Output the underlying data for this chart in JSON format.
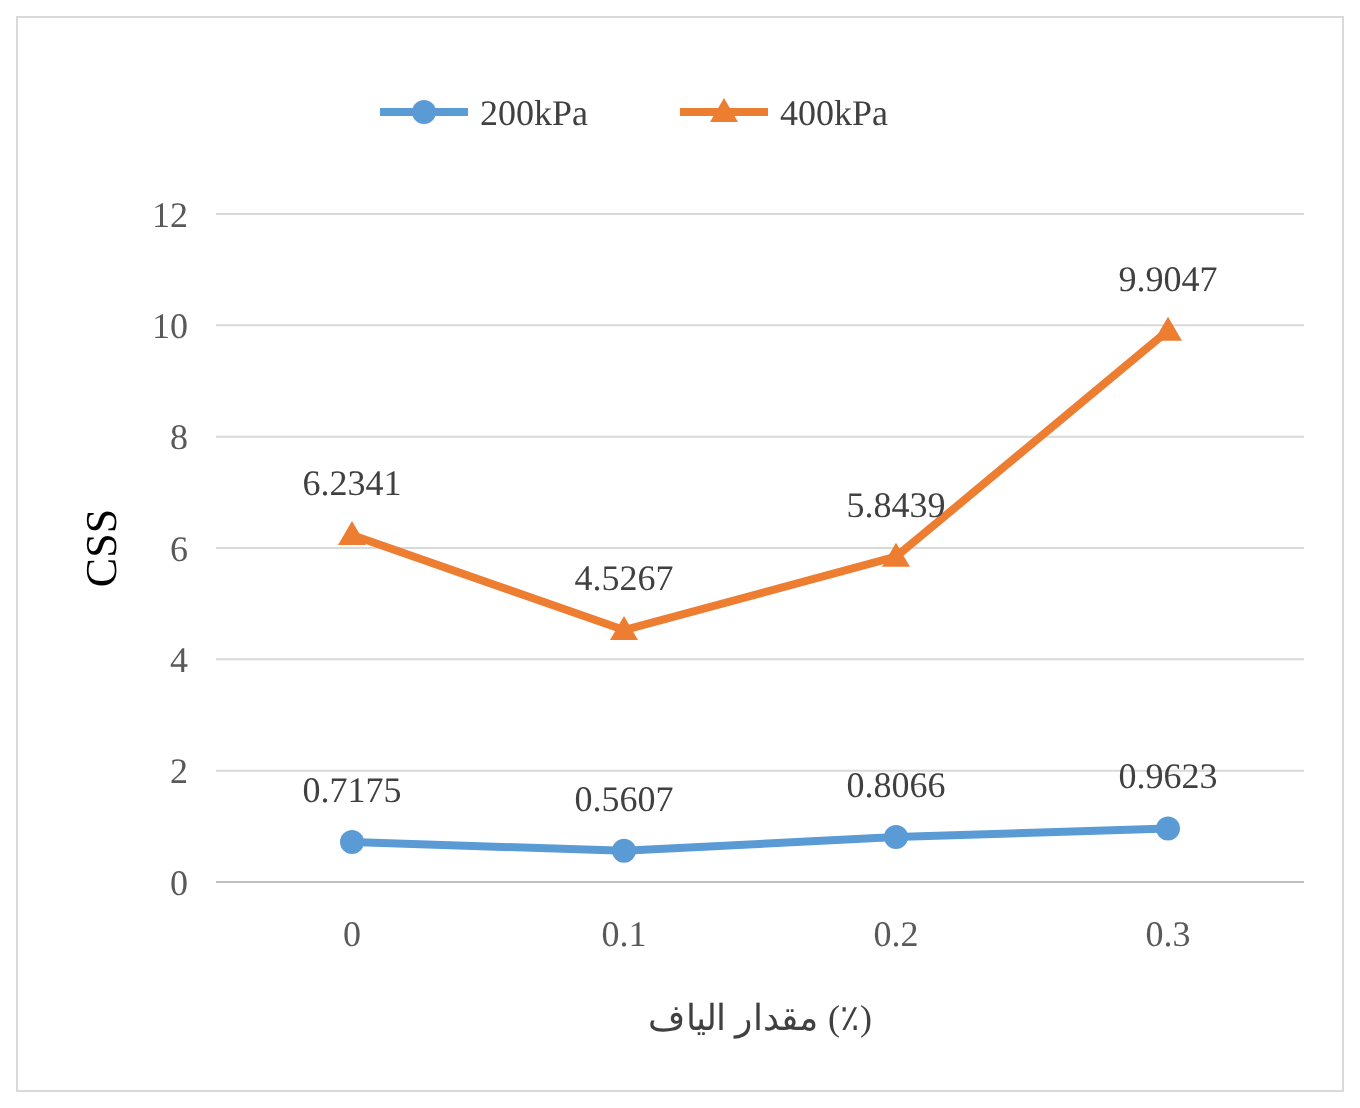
{
  "chart_data": {
    "type": "line",
    "xlabel": "مقدار الیاف (٪)",
    "ylabel": "CSS",
    "categories": [
      "0",
      "0.1",
      "0.2",
      "0.3"
    ],
    "series": [
      {
        "name": "200kPa",
        "color": "#5b9bd5",
        "marker": "circle",
        "values": [
          0.7175,
          0.5607,
          0.8066,
          0.9623
        ]
      },
      {
        "name": "400kPa",
        "color": "#ed7d31",
        "marker": "triangle",
        "values": [
          6.2341,
          4.5267,
          5.8439,
          9.9047
        ]
      }
    ],
    "ylim": [
      0,
      12
    ],
    "yticks": [
      0,
      2,
      4,
      6,
      8,
      10,
      12
    ],
    "grid": "y",
    "legend": "top",
    "data_labels": true,
    "line_style": "solid"
  }
}
